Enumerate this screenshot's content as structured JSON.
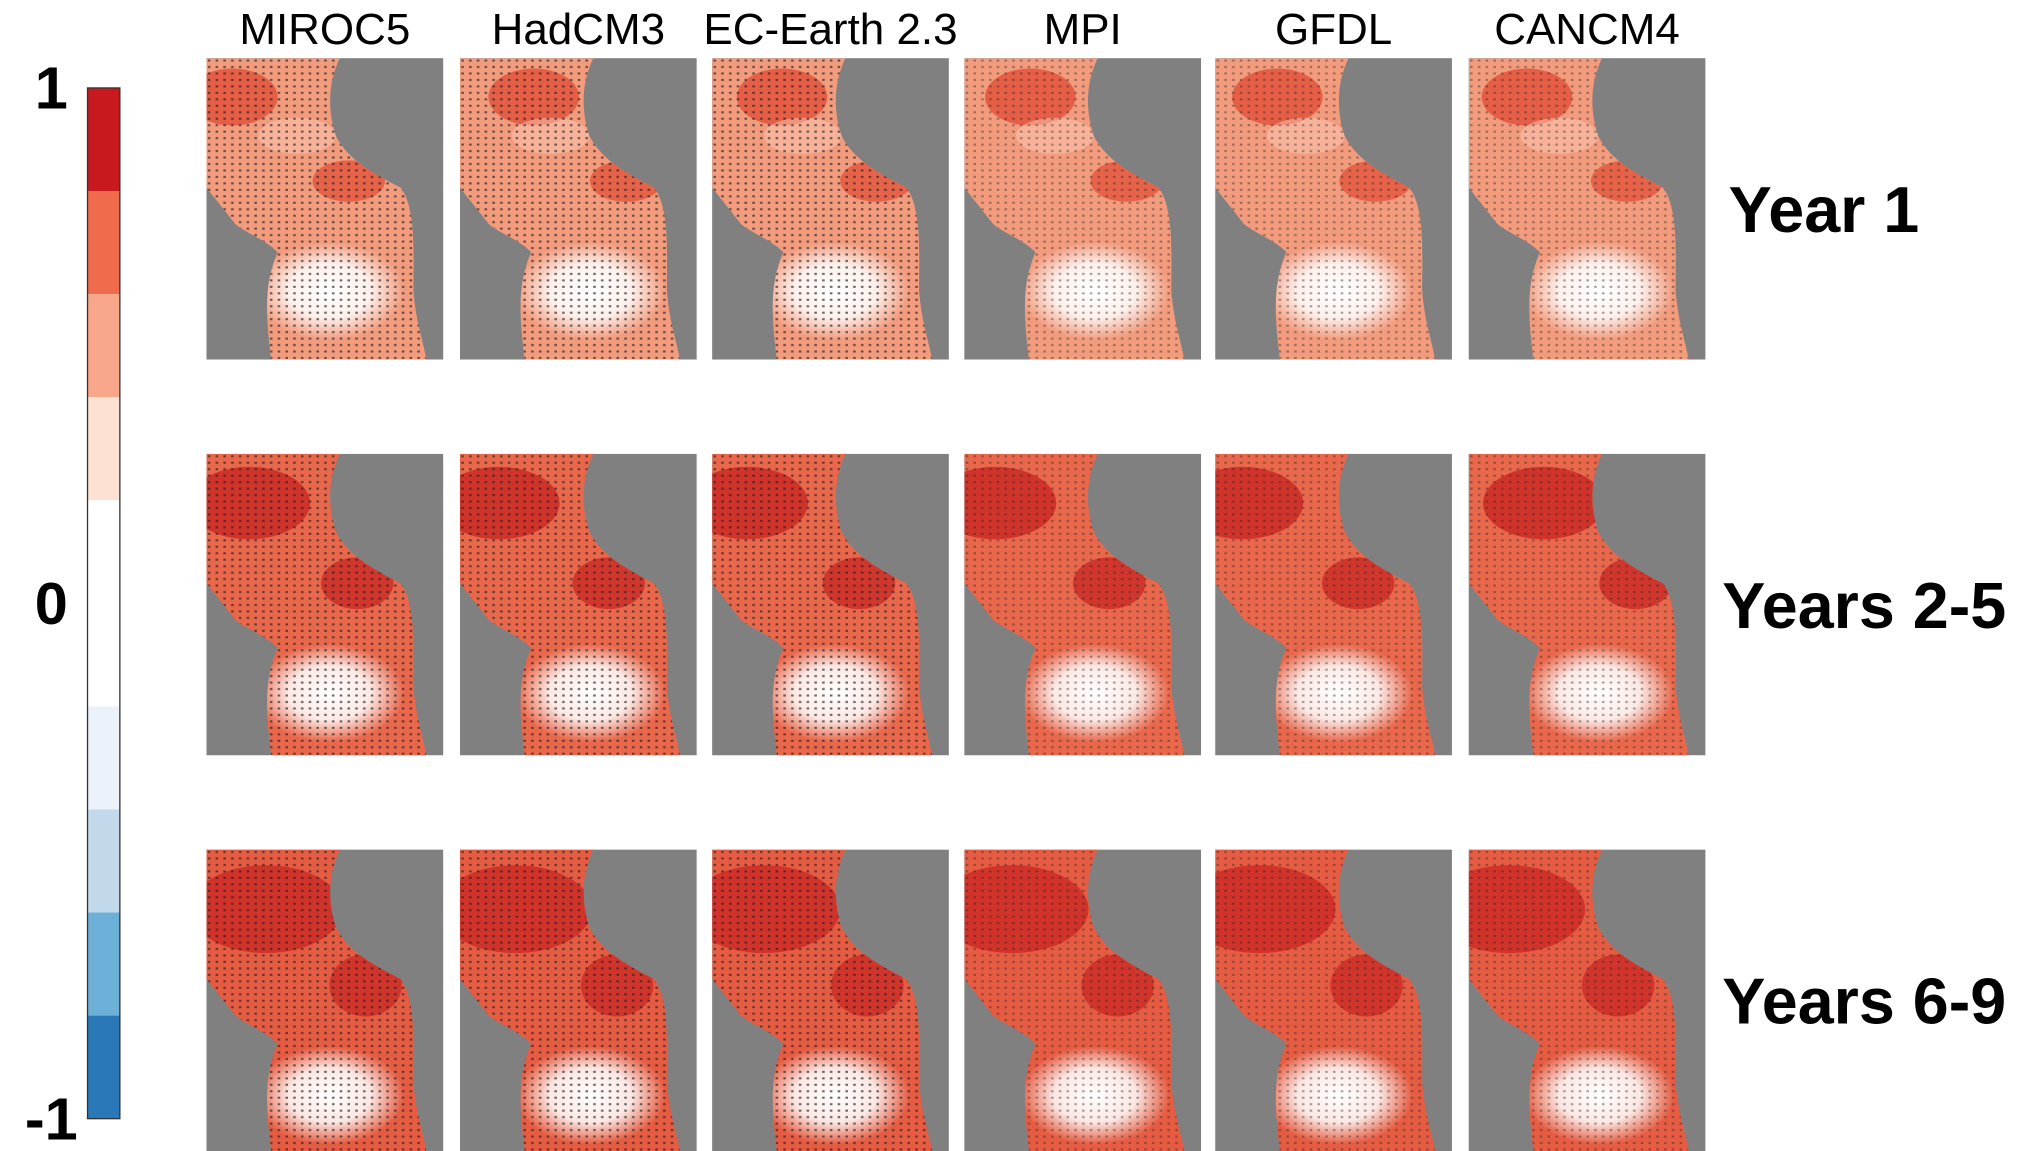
{
  "columns": [
    "MIROC5",
    "HadCM3",
    "EC-Earth 2.3",
    "MPI",
    "GFDL",
    "CANCM4"
  ],
  "rows": [
    "Year 1",
    "Years 2-5",
    "Years 6-9"
  ],
  "colorbar": {
    "min": -1,
    "max": 1,
    "ticks": [
      1,
      0,
      -1
    ],
    "colors": [
      "#c8191f",
      "#f06a4c",
      "#f8a78a",
      "#fde1d3",
      "#ffffff",
      "#ffffff",
      "#ebf2fa",
      "#c2d9eb",
      "#6cafd7",
      "#2a78b8"
    ]
  }
}
